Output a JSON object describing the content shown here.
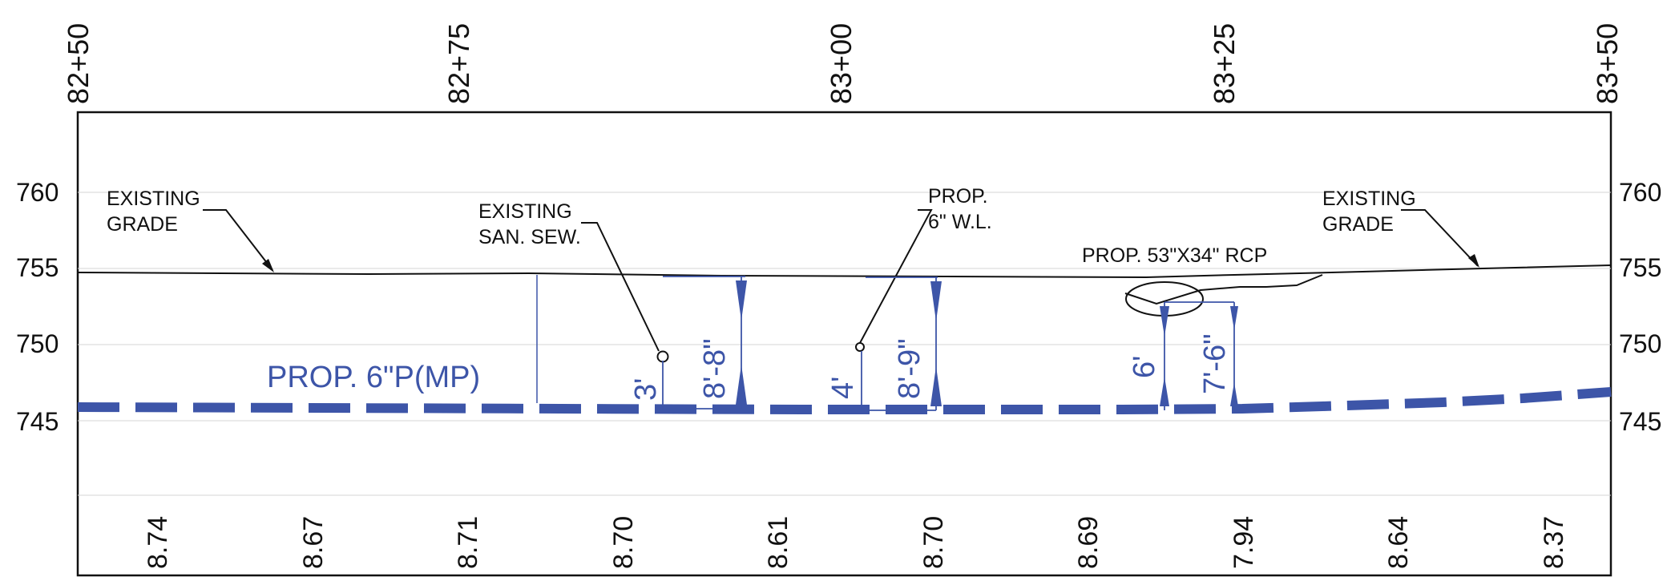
{
  "stations": [
    "82+50",
    "82+75",
    "83+00",
    "83+25",
    "83+50"
  ],
  "elevation_labels": [
    "760",
    "755",
    "750",
    "745"
  ],
  "callouts": {
    "existing_grade_left": [
      "EXISTING",
      "GRADE"
    ],
    "existing_san_sew": [
      "EXISTING",
      "SAN. SEW."
    ],
    "prop_wl": [
      "PROP.",
      "6\" W.L."
    ],
    "prop_rcp": "PROP. 53\"X34\" RCP",
    "existing_grade_right": [
      "EXISTING",
      "GRADE"
    ],
    "prop_pipe": "PROP. 6\"P(MP)"
  },
  "dimensions": {
    "sewer_clearance": "3'",
    "sewer_depth": "8'-8\"",
    "wl_clearance": "4'",
    "wl_depth": "8'-9\"",
    "rcp_clearance": "6'",
    "rcp_depth": "7'-6\""
  },
  "depth_values": [
    "8.74",
    "8.67",
    "8.71",
    "8.70",
    "8.61",
    "8.70",
    "8.69",
    "7.94",
    "8.64",
    "8.37"
  ],
  "colors": {
    "ink": "#111111",
    "proposed": "#3d55a8",
    "grid": "#d6d6d6"
  }
}
